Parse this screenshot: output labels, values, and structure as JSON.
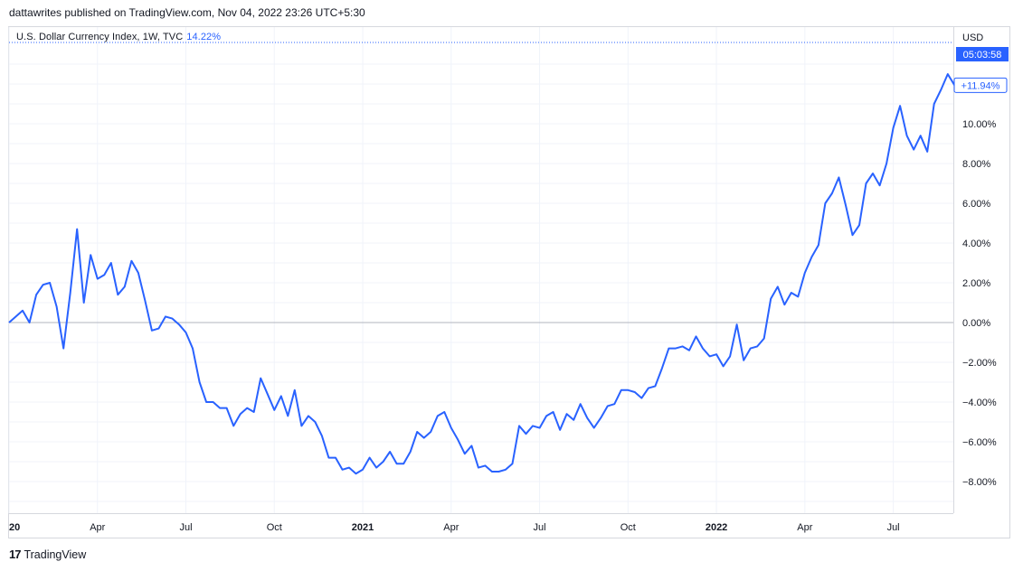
{
  "header": {
    "published_text": "dattawrites published on TradingView.com, Nov 04, 2022 23:26 UTC+5:30"
  },
  "legend": {
    "symbol_text": "U.S. Dollar Currency Index, 1W, TVC",
    "change_text": "14.22%"
  },
  "price_scale": {
    "currency_label": "USD",
    "countdown": "05:03:58",
    "current_value_label": "+11.94%"
  },
  "footer": {
    "brand_text": "TradingView",
    "logo_glyph": "17"
  },
  "colors": {
    "line": "#2962ff",
    "grid": "#f0f3fa",
    "zero_line": "#b2b5be",
    "countdown_bg": "#2962ff"
  },
  "chart_data": {
    "type": "line",
    "y_unit": "percent",
    "ylim": [
      -9.5,
      13.5
    ],
    "grid": true,
    "y_ticks": [
      {
        "value": 10,
        "label": "10.00%"
      },
      {
        "value": 8,
        "label": "8.00%"
      },
      {
        "value": 6,
        "label": "6.00%"
      },
      {
        "value": 4,
        "label": "4.00%"
      },
      {
        "value": 2,
        "label": "2.00%"
      },
      {
        "value": 0,
        "label": "0.00%"
      },
      {
        "value": -2,
        "label": "−2.00%"
      },
      {
        "value": -4,
        "label": "−4.00%"
      },
      {
        "value": -6,
        "label": "−6.00%"
      },
      {
        "value": -8,
        "label": "−8.00%"
      }
    ],
    "x_ticks": [
      {
        "week": 0,
        "label": "20",
        "bold": true
      },
      {
        "week": 13,
        "label": "Apr",
        "bold": false
      },
      {
        "week": 26,
        "label": "Jul",
        "bold": false
      },
      {
        "week": 39,
        "label": "Oct",
        "bold": false
      },
      {
        "week": 52,
        "label": "2021",
        "bold": true
      },
      {
        "week": 65,
        "label": "Apr",
        "bold": false
      },
      {
        "week": 78,
        "label": "Jul",
        "bold": false
      },
      {
        "week": 91,
        "label": "Oct",
        "bold": false
      },
      {
        "week": 104,
        "label": "2022",
        "bold": true
      },
      {
        "week": 117,
        "label": "Apr",
        "bold": false
      },
      {
        "week": 130,
        "label": "Jul",
        "bold": false
      }
    ],
    "xlim": [
      0,
      140
    ],
    "series": [
      {
        "values": [
          0.0,
          0.3,
          0.6,
          0.0,
          1.4,
          1.9,
          2.0,
          0.8,
          -1.3,
          1.5,
          4.7,
          1.0,
          3.4,
          2.2,
          2.4,
          3.0,
          1.4,
          1.8,
          3.1,
          2.5,
          1.1,
          -0.4,
          -0.3,
          0.3,
          0.2,
          -0.1,
          -0.5,
          -1.3,
          -3.0,
          -4.0,
          -4.0,
          -4.3,
          -4.3,
          -5.2,
          -4.6,
          -4.3,
          -4.5,
          -2.8,
          -3.6,
          -4.4,
          -3.7,
          -4.7,
          -3.4,
          -5.2,
          -4.7,
          -5.0,
          -5.7,
          -6.8,
          -6.8,
          -7.4,
          -7.3,
          -7.6,
          -7.4,
          -6.8,
          -7.3,
          -7.0,
          -6.5,
          -7.1,
          -7.1,
          -6.5,
          -5.5,
          -5.8,
          -5.5,
          -4.7,
          -4.5,
          -5.3,
          -5.9,
          -6.6,
          -6.2,
          -7.3,
          -7.2,
          -7.5,
          -7.5,
          -7.4,
          -7.1,
          -5.2,
          -5.6,
          -5.2,
          -5.3,
          -4.7,
          -4.5,
          -5.4,
          -4.6,
          -4.9,
          -4.1,
          -4.8,
          -5.3,
          -4.8,
          -4.2,
          -4.1,
          -3.4,
          -3.4,
          -3.5,
          -3.8,
          -3.3,
          -3.2,
          -2.3,
          -1.3,
          -1.3,
          -1.2,
          -1.4,
          -0.7,
          -1.3,
          -1.7,
          -1.6,
          -2.2,
          -1.7,
          -0.1,
          -1.9,
          -1.3,
          -1.2,
          -0.8,
          1.2,
          1.8,
          0.9,
          1.5,
          1.3,
          2.5,
          3.3,
          3.9,
          6.0,
          6.5,
          7.3,
          5.9,
          4.4,
          4.9,
          7.0,
          7.5,
          6.9,
          8.0,
          9.8,
          10.9,
          9.4,
          8.7,
          9.4,
          8.6,
          11.0,
          11.7,
          12.5,
          11.94
        ]
      }
    ]
  }
}
